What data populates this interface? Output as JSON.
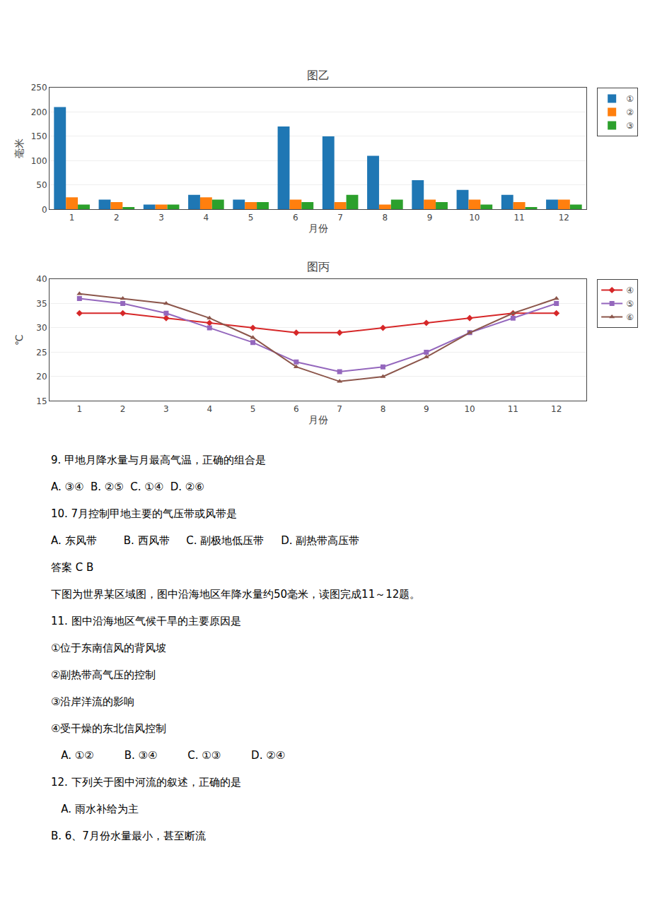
{
  "chart_data": [
    {
      "type": "bar",
      "title": "图乙",
      "xlabel": "月份",
      "ylabel": "毫米",
      "categories": [
        "1",
        "2",
        "3",
        "4",
        "5",
        "6",
        "7",
        "8",
        "9",
        "10",
        "11",
        "12"
      ],
      "series": [
        {
          "name": "①",
          "values": [
            210,
            20,
            10,
            30,
            20,
            170,
            150,
            110,
            60,
            40,
            30,
            20
          ]
        },
        {
          "name": "②",
          "values": [
            25,
            15,
            10,
            25,
            15,
            20,
            15,
            10,
            20,
            20,
            15,
            20
          ]
        },
        {
          "name": "③",
          "values": [
            10,
            5,
            10,
            20,
            15,
            15,
            30,
            20,
            15,
            10,
            5,
            10
          ]
        }
      ],
      "ylim": [
        0,
        250
      ],
      "yticks": [
        0,
        50,
        100,
        150,
        200,
        250
      ],
      "grid": true,
      "legend": "right"
    },
    {
      "type": "line",
      "title": "图丙",
      "xlabel": "月份",
      "ylabel": "℃",
      "categories": [
        "1",
        "2",
        "3",
        "4",
        "5",
        "6",
        "7",
        "8",
        "9",
        "10",
        "11",
        "12"
      ],
      "series": [
        {
          "name": "④",
          "marker": "diamond",
          "values": [
            33,
            33,
            32,
            31,
            30,
            29,
            29,
            30,
            31,
            32,
            33,
            33
          ]
        },
        {
          "name": "⑤",
          "marker": "square",
          "values": [
            36,
            35,
            33,
            30,
            27,
            23,
            21,
            22,
            25,
            29,
            32,
            35
          ]
        },
        {
          "name": "⑥",
          "marker": "triangle-up",
          "values": [
            37,
            36,
            35,
            32,
            28,
            22,
            19,
            20,
            24,
            29,
            33,
            36
          ]
        }
      ],
      "ylim": [
        15,
        40
      ],
      "yticks": [
        15,
        20,
        25,
        30,
        35,
        40
      ],
      "grid": true,
      "legend": "right"
    }
  ],
  "annotations": [
    "9. 甲地月降水量与月最高气温，正确的组合是",
    "A. ③④  B. ②⑤  C. ①④  D. ②⑥",
    "10. 7月控制甲地主要的气压带或风带是",
    "A. 东风带        B. 西风带     C. 副极地低压带     D. 副热带高压带",
    "答案 C B",
    "下图为世界某区域图，图中沿海地区年降水量约50毫米，读图完成11～12题。",
    "11. 图中沿海地区气候干旱的主要原因是",
    "①位于东南信风的背风坡",
    "②副热带高气压的控制",
    "③沿岸洋流的影响",
    "④受干燥的东北信风控制",
    "   A. ①②         B. ③④         C. ①③         D. ②④",
    "12. 下列关于图中河流的叙述，正确的是",
    "   A. 雨水补给为主",
    "B. 6、7月份水量最小，甚至断流"
  ]
}
